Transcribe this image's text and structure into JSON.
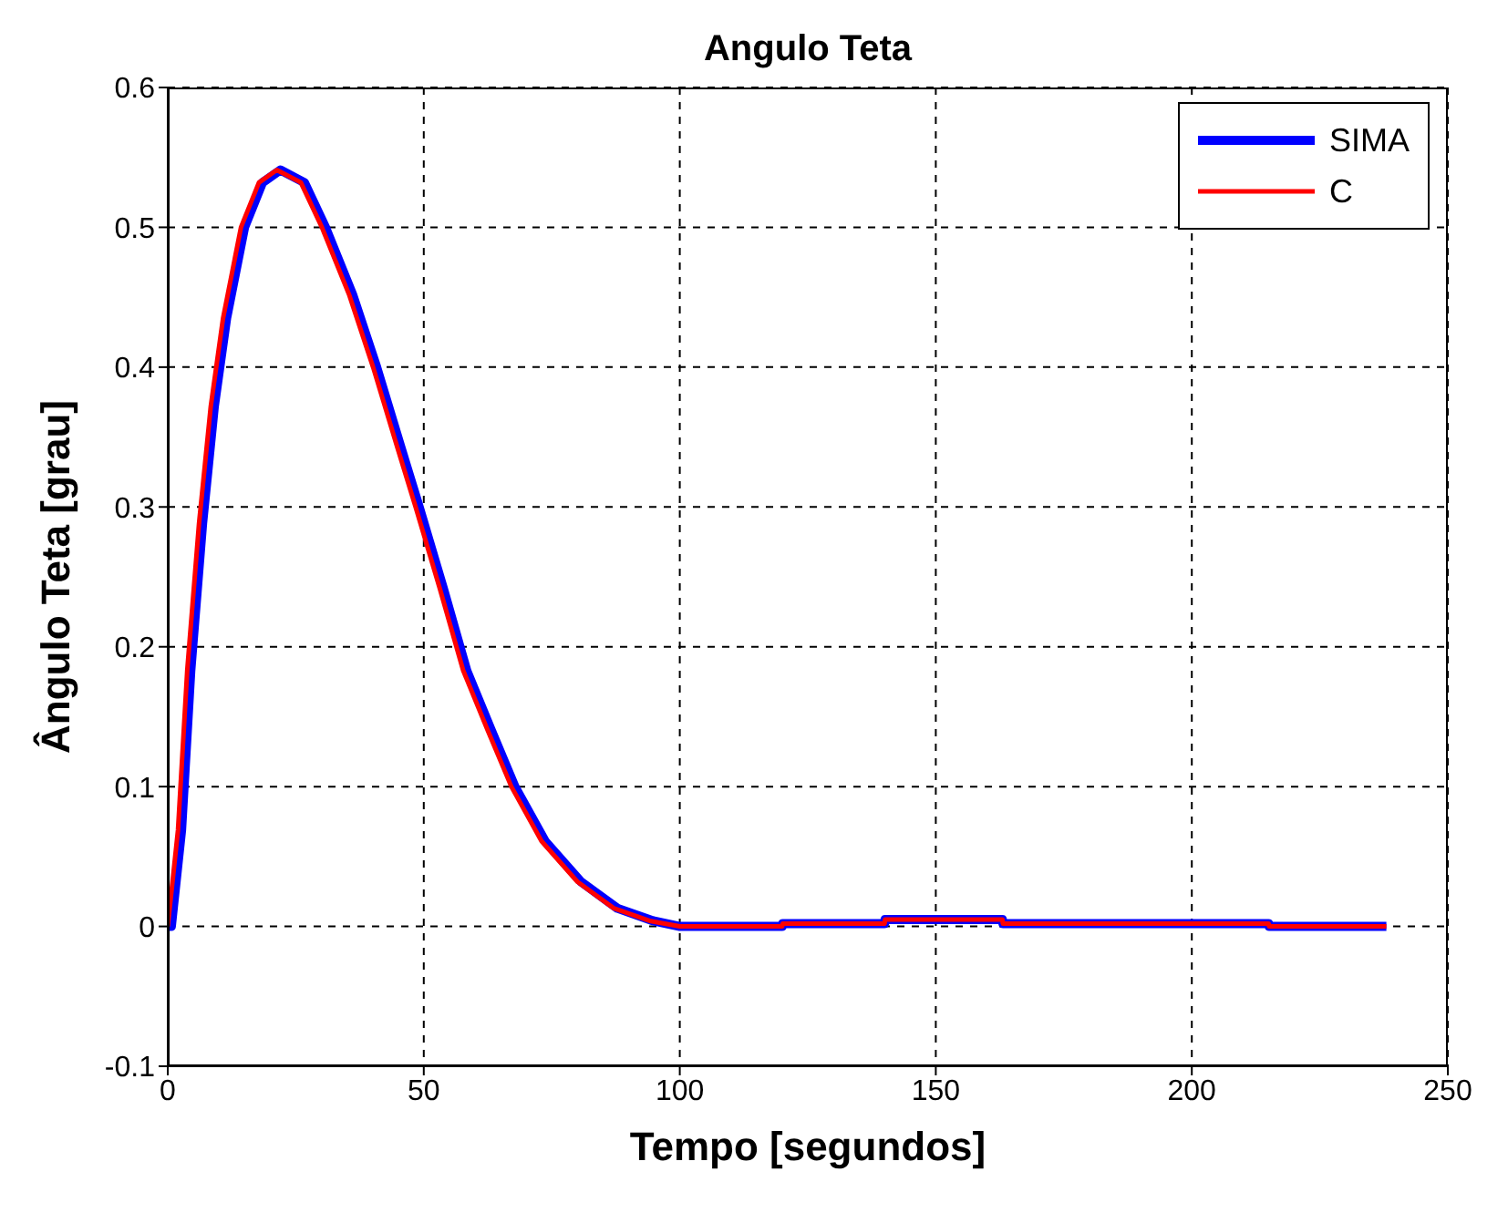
{
  "chart_data": {
    "type": "line",
    "title": "Angulo Teta",
    "xlabel": "Tempo [segundos]",
    "ylabel": "Ângulo Teta [grau]",
    "xlim": [
      0,
      250
    ],
    "xticks": [
      0,
      50,
      100,
      150,
      200,
      250
    ],
    "ylim": [
      -0.1,
      0.6
    ],
    "yticks": [
      -0.1,
      0,
      0.1,
      0.2,
      0.3,
      0.4,
      0.5,
      0.6
    ],
    "grid": true,
    "legend": "top right",
    "series": [
      {
        "name": "SIMA",
        "color": "#0000ff",
        "x": [
          0,
          0.7,
          2.7,
          4.5,
          6.8,
          9.1,
          11.5,
          15,
          18.5,
          22,
          26.7,
          30.8,
          36.1,
          40.8,
          45.5,
          49.1,
          53.8,
          58.4,
          63.1,
          67.8,
          73.7,
          80.7,
          87.8,
          94.8,
          100,
          120,
          120.1,
          140,
          140.1,
          163,
          163.1,
          215,
          215.1,
          238
        ],
        "values": [
          0,
          0,
          0.069,
          0.183,
          0.288,
          0.372,
          0.435,
          0.5,
          0.532,
          0.541,
          0.532,
          0.5,
          0.452,
          0.4,
          0.343,
          0.3,
          0.242,
          0.183,
          0.141,
          0.1,
          0.061,
          0.032,
          0.013,
          0.004,
          0,
          0,
          0.002,
          0.002,
          0.005,
          0.005,
          0.002,
          0.002,
          0,
          0
        ]
      },
      {
        "name": "C",
        "color": "#ff0000",
        "x": [
          0,
          2,
          3.8,
          6.1,
          8.4,
          10.8,
          14.3,
          17.8,
          21.3,
          26,
          30.1,
          35.4,
          40.1,
          44.8,
          48.4,
          53.1,
          57.7,
          62.4,
          67.1,
          73,
          80,
          87.1,
          94.1,
          100,
          120,
          120.1,
          140,
          140.1,
          163,
          163.1,
          215,
          215.1,
          238
        ],
        "values": [
          0,
          0.069,
          0.183,
          0.288,
          0.372,
          0.435,
          0.5,
          0.532,
          0.541,
          0.532,
          0.5,
          0.452,
          0.4,
          0.343,
          0.3,
          0.242,
          0.183,
          0.141,
          0.1,
          0.061,
          0.032,
          0.013,
          0.004,
          0,
          0,
          0.002,
          0.002,
          0.005,
          0.005,
          0.002,
          0.002,
          0,
          0
        ]
      }
    ]
  }
}
